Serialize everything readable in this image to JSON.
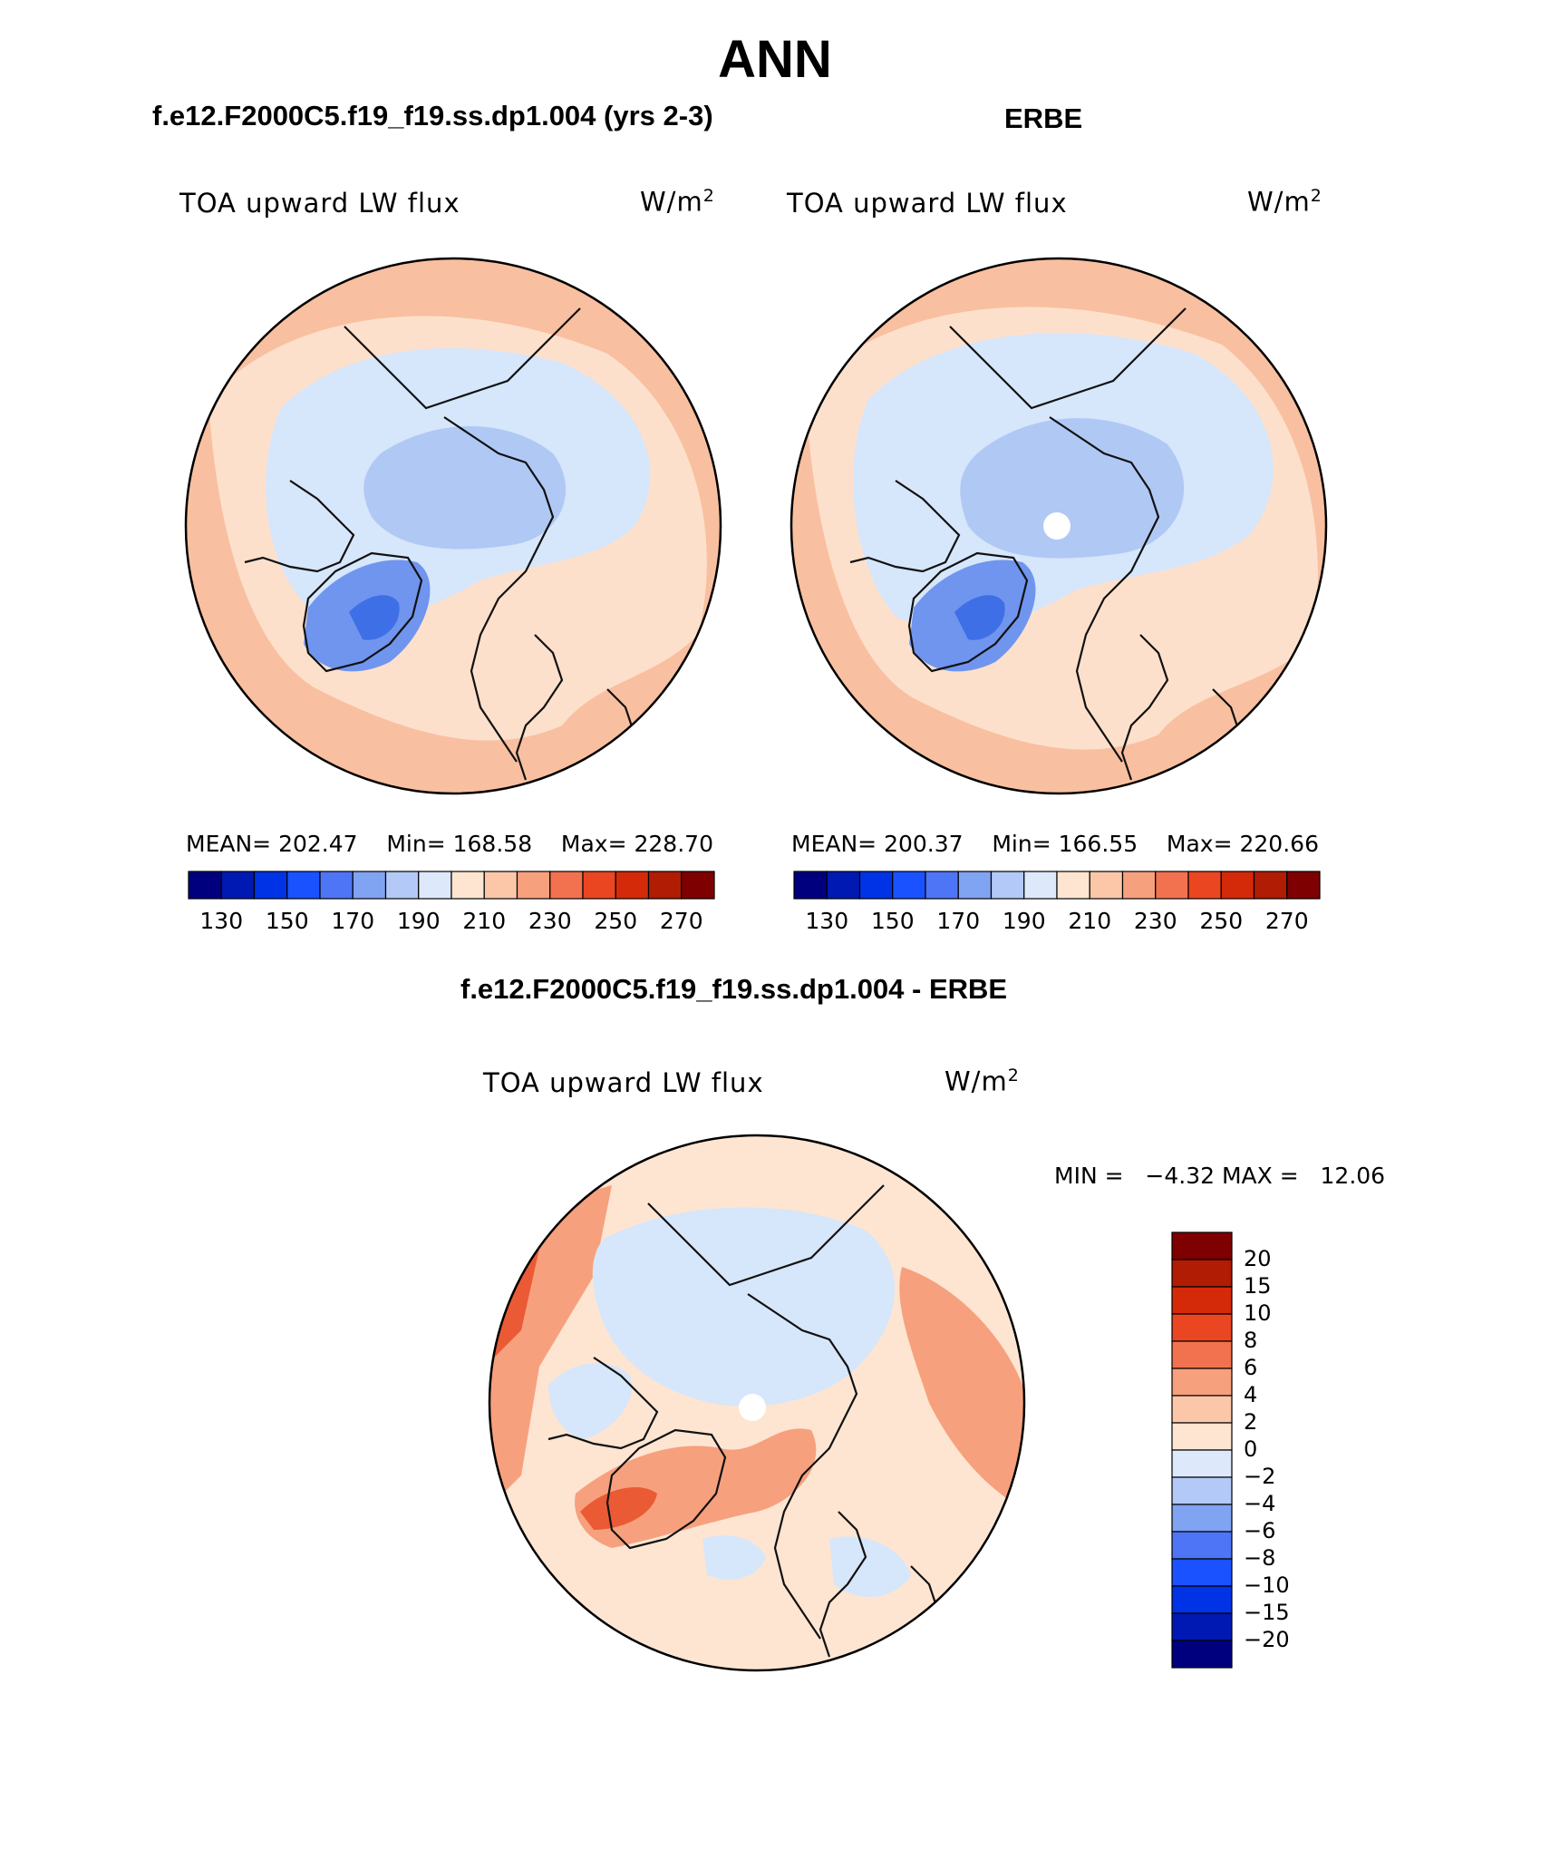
{
  "figure_title": "ANN",
  "panels": [
    {
      "caption": "f.e12.F2000C5.f19_f19.ss.dp1.004 (yrs 2-3)",
      "field": "TOA upward LW flux",
      "units_base": "W/m",
      "units_exp": "2",
      "mean_label": "MEAN=",
      "mean": "202.47",
      "min_label": "Min=",
      "min": "168.58",
      "max_label": "Max=",
      "max": "228.70",
      "polar_hole": false
    },
    {
      "caption": "ERBE",
      "field": "TOA upward LW flux",
      "units_base": "W/m",
      "units_exp": "2",
      "mean_label": "MEAN=",
      "mean": "200.37",
      "min_label": "Min=",
      "min": "166.55",
      "max_label": "Max=",
      "max": "220.66",
      "polar_hole": true
    }
  ],
  "abs_colorbar": {
    "colors": [
      "#00007f",
      "#0019b2",
      "#0033e5",
      "#1a52ff",
      "#4d75f5",
      "#80a3f2",
      "#b3c9f7",
      "#dde9fb",
      "#fde5d2",
      "#fbc7a8",
      "#f7a07d",
      "#f2724f",
      "#ea4622",
      "#d42a09",
      "#b01c04",
      "#7f0000"
    ],
    "tick_labels": [
      "130",
      "150",
      "170",
      "190",
      "210",
      "230",
      "250",
      "270"
    ]
  },
  "diff_panel": {
    "caption": "f.e12.F2000C5.f19_f19.ss.dp1.004 - ERBE",
    "field": "TOA upward LW flux",
    "units_base": "W/m",
    "units_exp": "2",
    "min_label": "MIN =",
    "min": "−4.32",
    "max_label": "MAX =",
    "max": "12.06"
  },
  "diff_colorbar": {
    "colors": [
      "#7f0000",
      "#b01c04",
      "#d42a09",
      "#ea4622",
      "#f2724f",
      "#f7a07d",
      "#fbc7a8",
      "#fde5d2",
      "#dde9fb",
      "#b3c9f7",
      "#80a3f2",
      "#4d75f5",
      "#1a52ff",
      "#0033e5",
      "#0019b2",
      "#00007f"
    ],
    "labels": [
      "20",
      "15",
      "10",
      "8",
      "6",
      "4",
      "2",
      "0",
      "−2",
      "−4",
      "−6",
      "−8",
      "−10",
      "−15",
      "−20"
    ]
  },
  "map_palette": {
    "ocean_warm": "#f8c0a0",
    "ocean_mild": "#fde0cc",
    "arctic_cool": "#d6e6fb",
    "arctic_core": "#b0c8f4",
    "greenland": "#6f95ee",
    "greenland_core": "#3f6fe6",
    "diff_pos_strong": "#ea5a35",
    "diff_pos": "#f7a07d",
    "diff_light": "#fde5d2",
    "diff_neg": "#d6e6fb"
  }
}
